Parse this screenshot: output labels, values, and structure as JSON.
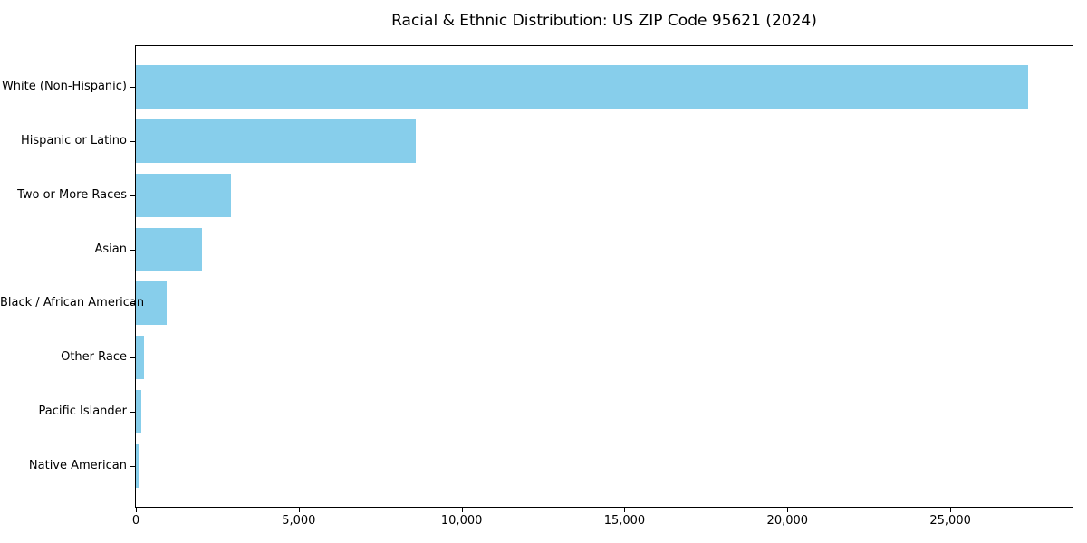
{
  "chart_data": {
    "type": "bar",
    "orientation": "horizontal",
    "title": "Racial & Ethnic Distribution: US ZIP Code 95621 (2024)",
    "categories": [
      "White (Non-Hispanic)",
      "Hispanic or Latino",
      "Two or More Races",
      "Asian",
      "Black / African American",
      "Other Race",
      "Pacific Islander",
      "Native American"
    ],
    "values": [
      27400,
      8600,
      2920,
      2030,
      940,
      260,
      170,
      110
    ],
    "xlabel": "",
    "ylabel": "",
    "xlim": [
      0,
      28750
    ],
    "x_ticks": [
      0,
      5000,
      10000,
      15000,
      20000,
      25000
    ],
    "x_tick_labels": [
      "0",
      "5,000",
      "10,000",
      "15,000",
      "20,000",
      "25,000"
    ],
    "bar_color": "#87CEEB",
    "spine_color": "#000000",
    "background_color": "#ffffff",
    "grid": false,
    "legend": null
  }
}
